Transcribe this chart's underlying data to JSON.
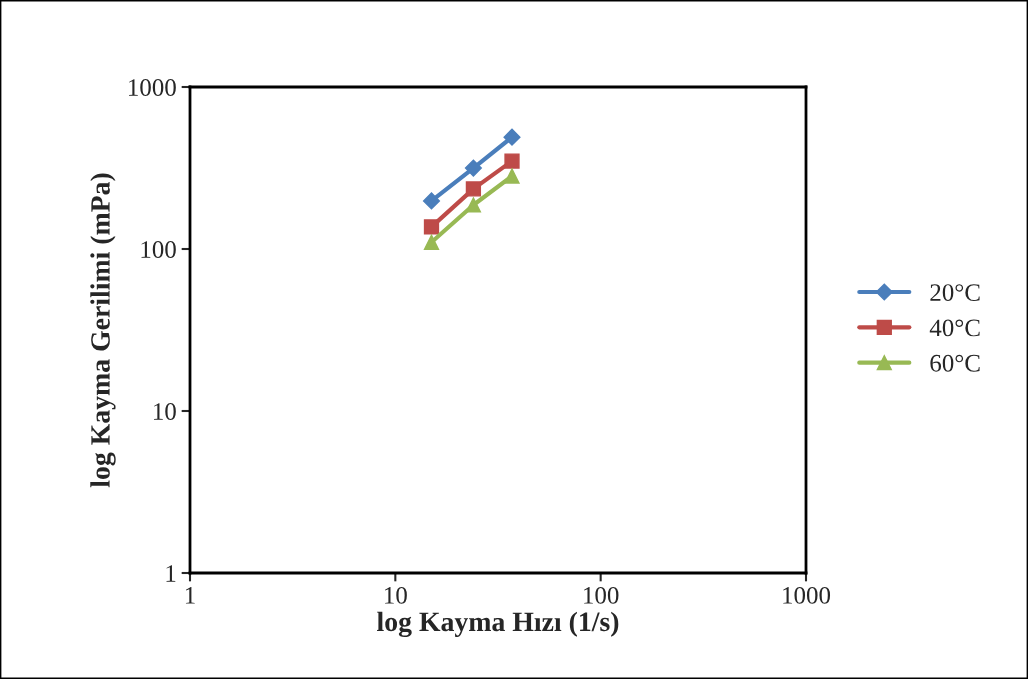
{
  "chart_data": {
    "type": "line",
    "xlabel": "log Kayma Hızı (1/s)",
    "ylabel": "log Kayma Gerilimi (mPa)",
    "log": "xy",
    "xlim": [
      1,
      1000
    ],
    "ylim": [
      1,
      1000
    ],
    "xticks": [
      1,
      10,
      100,
      1000
    ],
    "yticks": [
      1,
      10,
      100,
      1000
    ],
    "grid": false,
    "legend": "right",
    "series": [
      {
        "name": "20°C",
        "color": "#4a7ebb",
        "marker": "diamond",
        "x": [
          15,
          24,
          37
        ],
        "values": [
          198,
          316,
          490
        ]
      },
      {
        "name": "40°C",
        "color": "#be4b48",
        "marker": "square",
        "x": [
          15,
          24,
          37
        ],
        "values": [
          137,
          235,
          349
        ]
      },
      {
        "name": "60°C",
        "color": "#98b954",
        "marker": "triangle",
        "x": [
          15,
          24,
          37
        ],
        "values": [
          110,
          187,
          282
        ]
      }
    ]
  }
}
